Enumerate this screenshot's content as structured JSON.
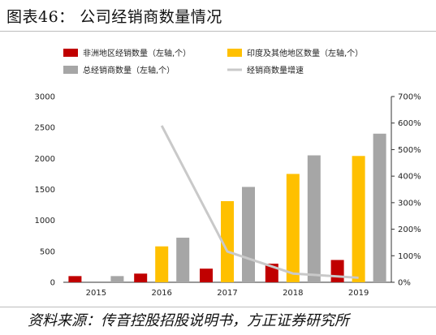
{
  "header": {
    "title": "图表46：  公司经销商数量情况"
  },
  "footer": {
    "source": "资料来源：传音控股招股说明书，方正证券研究所"
  },
  "chart_data": {
    "type": "bar",
    "categories": [
      "2015",
      "2016",
      "2017",
      "2018",
      "2019"
    ],
    "series": [
      {
        "name": "非洲地区经销数量（左轴,个）",
        "type": "bar",
        "axis": "left",
        "color": "#c00000",
        "values": [
          100,
          140,
          220,
          300,
          360
        ]
      },
      {
        "name": "印度及其他地区数量（左轴,个）",
        "type": "bar",
        "axis": "left",
        "color": "#ffc000",
        "values": [
          0,
          580,
          1310,
          1750,
          2040
        ]
      },
      {
        "name": "总经销商数量（左轴,个）",
        "type": "bar",
        "axis": "left",
        "color": "#a6a6a6",
        "values": [
          100,
          720,
          1540,
          2050,
          2400
        ]
      },
      {
        "name": "经销商数量增速",
        "type": "line",
        "axis": "right",
        "color": "#c9c9c9",
        "values": [
          null,
          5.9,
          1.16,
          0.33,
          0.17
        ]
      }
    ],
    "left_axis": {
      "min": 0,
      "max": 3000,
      "ticks": [
        0,
        500,
        1000,
        1500,
        2000,
        2500,
        3000
      ]
    },
    "right_axis": {
      "min": 0,
      "max": 7,
      "ticks": [
        "0%",
        "100%",
        "200%",
        "300%",
        "400%",
        "500%",
        "600%",
        "700%"
      ]
    },
    "legend_position": "top",
    "grid": false
  }
}
